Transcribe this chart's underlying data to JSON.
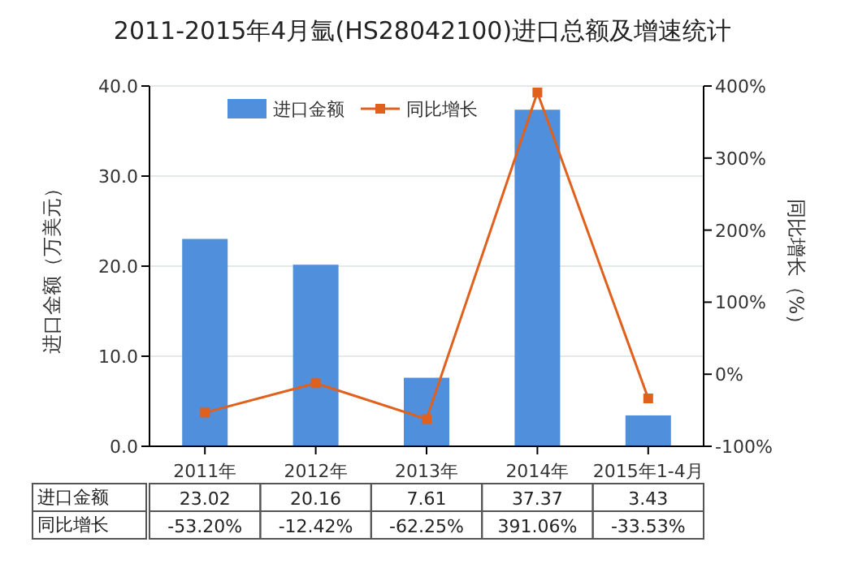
{
  "chart_data": {
    "type": "bar",
    "title": "2011-2015年4月氩(HS28042100)进口总额及增速统计",
    "ylabel": "进口金额（万美元）",
    "y2label": "同比增长（%）",
    "categories": [
      "2011年",
      "2012年",
      "2013年",
      "2014年",
      "2015年1-4月"
    ],
    "series": [
      {
        "name": "进口金额",
        "color": "#4f8fdc",
        "values": [
          23.02,
          20.16,
          7.61,
          37.37,
          3.43
        ],
        "value_labels": [
          "23.02",
          "20.16",
          "7.61",
          "37.37",
          "3.43"
        ]
      },
      {
        "name": "同比增长",
        "type": "line",
        "axis": "y2",
        "color": "#e0601e",
        "values": [
          -53.2,
          -12.42,
          -62.25,
          391.06,
          -33.53
        ],
        "value_labels": [
          "-53.20%",
          "-12.42%",
          "-62.25%",
          "391.06%",
          "-33.53%"
        ]
      }
    ],
    "ylim": [
      0,
      40
    ],
    "yticks": [
      {
        "value": 0,
        "label": "0.0"
      },
      {
        "value": 10,
        "label": "10.0"
      },
      {
        "value": 20,
        "label": "20.0"
      },
      {
        "value": 30,
        "label": "30.0"
      },
      {
        "value": 40,
        "label": "40.0"
      }
    ],
    "y2lim": [
      -100,
      400
    ],
    "y2ticks": [
      {
        "value": -100,
        "label": "-100%"
      },
      {
        "value": 0,
        "label": "0%"
      },
      {
        "value": 100,
        "label": "100%"
      },
      {
        "value": 200,
        "label": "200%"
      },
      {
        "value": 300,
        "label": "300%"
      },
      {
        "value": 400,
        "label": "400%"
      }
    ],
    "grid": "y",
    "legend": "top",
    "marker": "square",
    "line_style": "solid"
  }
}
